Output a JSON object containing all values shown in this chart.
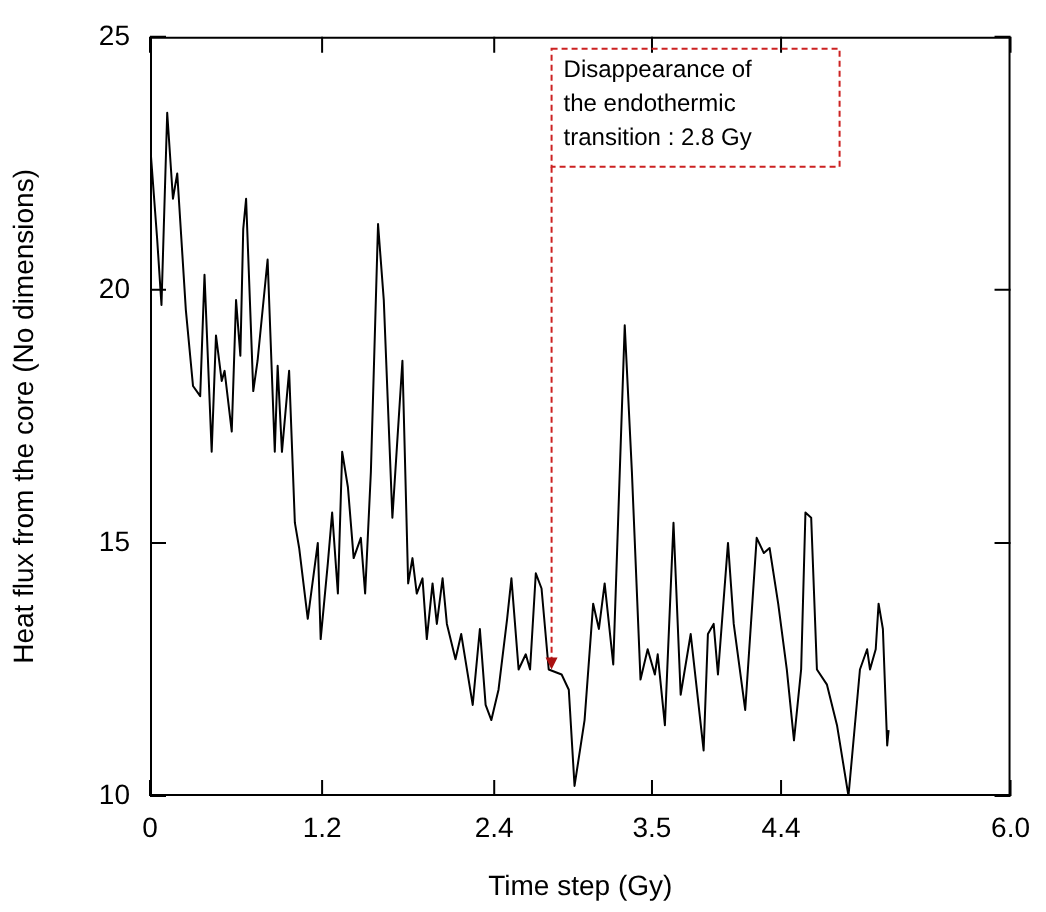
{
  "chart_data": {
    "type": "line",
    "xlabel": "Time step (Gy)",
    "ylabel": "Heat flux from the core (No dimensions)",
    "xlim": [
      0,
      6.0
    ],
    "xticks": [
      0,
      1.2,
      2.4,
      3.5,
      4.4,
      {
        "value": 6.0,
        "label": "6.0"
      }
    ],
    "ylim": [
      10,
      25
    ],
    "yticks": [
      10,
      15,
      20,
      25
    ],
    "grid": false,
    "legend": false,
    "marker": "none",
    "line_style": "solid",
    "annotations": [
      {
        "text": "Disappearance of the endothermic transition : 2.8 Gy",
        "x": 2.8,
        "y": 12.5
      }
    ],
    "series": [
      {
        "color": "#000000",
        "x": [
          0,
          0.05,
          0.08,
          0.12,
          0.16,
          0.19,
          0.25,
          0.3,
          0.35,
          0.38,
          0.43,
          0.46,
          0.5,
          0.52,
          0.57,
          0.6,
          0.63,
          0.65,
          0.67,
          0.72,
          0.75,
          0.82,
          0.87,
          0.89,
          0.92,
          0.97,
          1.01,
          1.04,
          1.1,
          1.17,
          1.19,
          1.24,
          1.27,
          1.31,
          1.34,
          1.38,
          1.42,
          1.47,
          1.5,
          1.54,
          1.59,
          1.63,
          1.69,
          1.76,
          1.8,
          1.83,
          1.86,
          1.9,
          1.93,
          1.97,
          2.0,
          2.04,
          2.07,
          2.13,
          2.17,
          2.25,
          2.3,
          2.34,
          2.38,
          2.43,
          2.49,
          2.52,
          2.57,
          2.62,
          2.65,
          2.69,
          2.73,
          2.78,
          2.87,
          2.92,
          2.96,
          3.03,
          3.09,
          3.13,
          3.17,
          3.23,
          3.31,
          3.36,
          3.42,
          3.47,
          3.52,
          3.54,
          3.59,
          3.65,
          3.7,
          3.77,
          3.86,
          3.89,
          3.93,
          3.96,
          4.03,
          4.07,
          4.15,
          4.23,
          4.28,
          4.32,
          4.38,
          4.44,
          4.49,
          4.54,
          4.57,
          4.61,
          4.65,
          4.72,
          4.79,
          4.87,
          4.95,
          5.0,
          5.02,
          5.06,
          5.08,
          5.11,
          5.14,
          5.15
        ],
        "values": [
          22.9,
          21.0,
          19.7,
          23.5,
          21.8,
          22.3,
          19.6,
          18.1,
          17.9,
          20.3,
          16.8,
          19.1,
          18.2,
          18.4,
          17.2,
          19.8,
          18.7,
          21.2,
          21.8,
          18.0,
          18.6,
          20.6,
          16.8,
          18.5,
          16.8,
          18.4,
          15.4,
          14.9,
          13.5,
          15.0,
          13.1,
          14.6,
          15.6,
          14.0,
          16.8,
          16.1,
          14.7,
          15.1,
          14.0,
          16.4,
          21.3,
          19.8,
          15.5,
          18.6,
          14.2,
          14.7,
          14.0,
          14.3,
          13.1,
          14.2,
          13.4,
          14.3,
          13.4,
          12.7,
          13.2,
          11.8,
          13.3,
          11.8,
          11.5,
          12.1,
          13.5,
          14.3,
          12.5,
          12.8,
          12.5,
          14.4,
          14.1,
          12.5,
          12.4,
          12.1,
          10.2,
          11.5,
          13.8,
          13.3,
          14.2,
          12.6,
          19.3,
          16.4,
          12.3,
          12.9,
          12.4,
          12.8,
          11.4,
          15.4,
          12.0,
          13.2,
          10.9,
          13.2,
          13.4,
          12.4,
          15.0,
          13.4,
          11.7,
          15.1,
          14.8,
          14.9,
          13.8,
          12.5,
          11.1,
          12.5,
          15.6,
          15.5,
          12.5,
          12.2,
          11.4,
          10.0,
          12.5,
          12.9,
          12.5,
          12.9,
          13.8,
          13.3,
          11.0,
          11.3
        ]
      }
    ]
  }
}
